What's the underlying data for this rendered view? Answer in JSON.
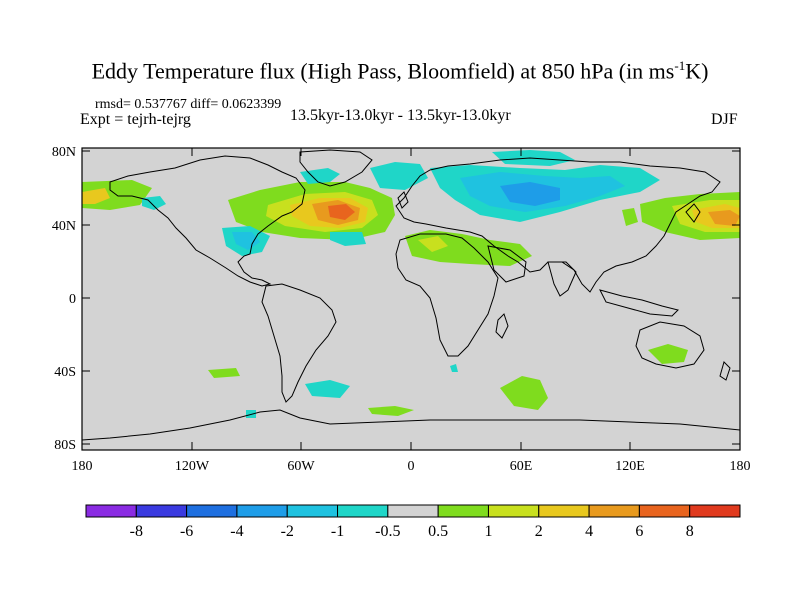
{
  "title": {
    "main": "Eddy Temperature flux (High Pass, Bloomfield) at 850 hPa (in ms",
    "superscript": "-1",
    "unit_tail": "K)"
  },
  "stats": "rmsd= 0.537767 diff= 0.0623399",
  "experiment": "Expt = tejrh-tejrg",
  "period": "13.5kyr-13.0kyr - 13.5kyr-13.0kyr",
  "season": "DJF",
  "map": {
    "lat_ticks": [
      "80N",
      "40N",
      "0",
      "40S",
      "80S"
    ],
    "lon_ticks": [
      "180",
      "120W",
      "60W",
      "0",
      "60E",
      "120E",
      "180"
    ],
    "land_fill": "#d3d3d3",
    "coastline_color": "#000000"
  },
  "colorbar": {
    "labels": [
      "-8",
      "-6",
      "-4",
      "-2",
      "-1",
      "-0.5",
      "0.5",
      "1",
      "2",
      "4",
      "6",
      "8"
    ],
    "colors": [
      "#8a2be2",
      "#3a3ae0",
      "#1e6fe0",
      "#1e9de8",
      "#1fc2e0",
      "#1fd6c8",
      "#d3d3d3",
      "#7fdc1e",
      "#c8e01e",
      "#e8c81e",
      "#e89a1e",
      "#e8641e",
      "#e03a1e"
    ]
  }
}
